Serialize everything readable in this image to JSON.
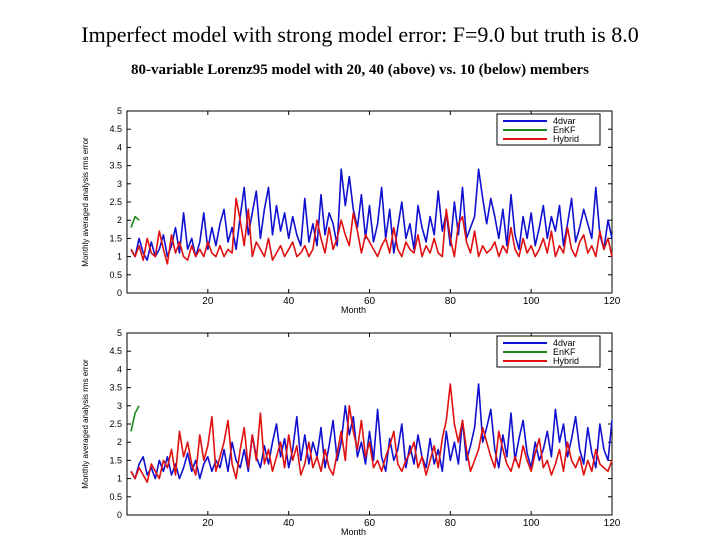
{
  "page": {
    "title": "Imperfect model  with strong model error: F=9.0 but truth is 8.0",
    "subtitle": "80-variable Lorenz95 model with 20, 40 (above) vs. 10 (below) members"
  },
  "colors": {
    "4dvar": "#1010d0",
    "EnKF": "#1a8a1a",
    "Hybrid": "#e01010",
    "axis": "#000000"
  },
  "chart_data": [
    {
      "type": "line",
      "title": "",
      "xlabel": "Month",
      "ylabel": "Monthly averaged analysis rms error",
      "xlim": [
        0,
        120
      ],
      "ylim": [
        0,
        5
      ],
      "xticks": [
        20,
        40,
        60,
        80,
        100,
        120
      ],
      "yticks": [
        0,
        0.5,
        1,
        1.5,
        2,
        2.5,
        3,
        3.5,
        4,
        4.5,
        5
      ],
      "legend_position": "top-right",
      "series": [
        {
          "name": "4dvar",
          "color": "#1010d0",
          "x_start": 1,
          "values": [
            1.2,
            1.0,
            1.5,
            1.1,
            0.9,
            1.4,
            1.0,
            1.2,
            1.6,
            1.0,
            1.3,
            1.8,
            1.1,
            2.2,
            1.2,
            1.5,
            1.0,
            1.4,
            2.2,
            1.2,
            1.8,
            1.3,
            1.9,
            2.3,
            1.4,
            1.8,
            1.2,
            2.1,
            2.9,
            1.6,
            2.2,
            2.8,
            1.5,
            2.3,
            2.9,
            1.6,
            2.4,
            1.7,
            2.2,
            1.5,
            2.1,
            1.6,
            1.3,
            2.6,
            1.4,
            1.9,
            1.3,
            2.7,
            1.6,
            2.2,
            1.9,
            1.3,
            3.4,
            2.4,
            3.2,
            2.3,
            1.8,
            2.7,
            1.5,
            2.4,
            1.4,
            1.9,
            2.9,
            1.5,
            2.3,
            1.1,
            1.8,
            2.5,
            1.5,
            1.9,
            1.2,
            2.4,
            1.8,
            1.4,
            2.1,
            1.6,
            2.8,
            1.7,
            2.2,
            1.3,
            2.5,
            1.6,
            2.9,
            1.5,
            1.8,
            2.1,
            3.4,
            2.6,
            1.9,
            2.6,
            2.1,
            1.5,
            2.3,
            1.3,
            2.7,
            1.6,
            1.2,
            2.1,
            1.5,
            2.2,
            1.3,
            1.8,
            2.4,
            1.5,
            2.1,
            1.7,
            2.4,
            1.3,
            1.9,
            2.6,
            1.4,
            1.8,
            2.3,
            1.9,
            1.5,
            2.9,
            1.6,
            1.2,
            2.0,
            1.5
          ]
        },
        {
          "name": "EnKF",
          "color": "#1a8a1a",
          "x_start": 1,
          "values": [
            1.8,
            2.1,
            2.0
          ]
        },
        {
          "name": "Hybrid",
          "color": "#e01010",
          "x_start": 1,
          "values": [
            1.2,
            1.0,
            1.3,
            0.9,
            1.5,
            1.1,
            1.0,
            1.7,
            1.2,
            0.8,
            1.6,
            1.1,
            1.4,
            1.0,
            0.9,
            1.3,
            1.0,
            1.2,
            1.0,
            1.4,
            1.1,
            1.0,
            1.3,
            1.0,
            1.2,
            1.1,
            2.6,
            2.0,
            1.3,
            2.3,
            1.0,
            1.4,
            1.2,
            1.0,
            1.5,
            0.9,
            1.1,
            1.3,
            1.0,
            1.2,
            1.4,
            1.0,
            1.1,
            1.3,
            1.0,
            1.2,
            2.0,
            1.5,
            1.1,
            1.8,
            1.2,
            1.5,
            2.0,
            1.6,
            1.3,
            2.2,
            1.7,
            1.1,
            1.6,
            1.4,
            1.2,
            1.0,
            1.3,
            1.5,
            1.1,
            1.8,
            1.2,
            1.0,
            1.4,
            1.2,
            1.1,
            1.6,
            1.0,
            1.3,
            1.1,
            1.5,
            1.1,
            1.0,
            2.3,
            1.5,
            1.0,
            1.9,
            2.1,
            1.4,
            1.1,
            1.7,
            1.0,
            1.3,
            1.1,
            1.2,
            1.4,
            1.0,
            1.3,
            1.1,
            1.8,
            1.2,
            1.0,
            1.5,
            1.1,
            1.3,
            1.0,
            1.2,
            1.5,
            1.1,
            1.7,
            1.0,
            1.3,
            1.1,
            1.8,
            1.2,
            1.0,
            1.4,
            1.6,
            1.1,
            1.3,
            1.0,
            1.7,
            1.2,
            1.5,
            1.0
          ]
        }
      ]
    },
    {
      "type": "line",
      "title": "",
      "xlabel": "Month",
      "ylabel": "Monthly averaged analysis rms error",
      "xlim": [
        0,
        120
      ],
      "ylim": [
        0,
        5
      ],
      "xticks": [
        20,
        40,
        60,
        80,
        100,
        120
      ],
      "yticks": [
        0,
        0.5,
        1,
        1.5,
        2,
        2.5,
        3,
        3.5,
        4,
        4.5,
        5
      ],
      "legend_position": "top-right",
      "series": [
        {
          "name": "4dvar",
          "color": "#1010d0",
          "x_start": 1,
          "values": [
            1.2,
            1.0,
            1.4,
            1.6,
            1.1,
            1.3,
            1.0,
            1.5,
            1.2,
            1.6,
            1.1,
            1.4,
            1.0,
            1.3,
            1.7,
            1.2,
            1.5,
            1.0,
            1.4,
            1.6,
            1.2,
            1.5,
            1.3,
            1.8,
            1.2,
            2.0,
            1.5,
            1.3,
            1.8,
            1.2,
            2.2,
            1.6,
            1.3,
            1.9,
            1.4,
            2.0,
            2.5,
            1.6,
            2.1,
            1.3,
            1.8,
            2.7,
            1.5,
            2.2,
            1.4,
            2.0,
            1.6,
            2.4,
            1.3,
            1.9,
            2.6,
            1.5,
            2.0,
            3.0,
            2.2,
            2.7,
            1.6,
            2.0,
            1.4,
            2.3,
            1.5,
            2.9,
            1.6,
            1.2,
            2.1,
            1.5,
            1.8,
            2.5,
            1.3,
            1.9,
            1.4,
            2.2,
            1.6,
            1.3,
            2.1,
            1.4,
            1.8,
            1.2,
            2.3,
            1.5,
            2.0,
            1.4,
            2.6,
            1.5,
            1.9,
            2.4,
            3.6,
            2.0,
            2.4,
            2.9,
            1.8,
            1.3,
            2.2,
            1.6,
            2.8,
            1.5,
            2.1,
            2.6,
            1.7,
            1.3,
            2.0,
            1.5,
            1.8,
            2.3,
            1.6,
            2.9,
            2.0,
            2.5,
            1.6,
            2.1,
            2.7,
            1.8,
            1.4,
            2.4,
            1.7,
            1.3,
            2.5,
            1.8,
            1.5,
            2.6
          ]
        },
        {
          "name": "EnKF",
          "color": "#1a8a1a",
          "x_start": 1,
          "values": [
            2.3,
            2.8,
            3.0
          ]
        },
        {
          "name": "Hybrid",
          "color": "#e01010",
          "x_start": 1,
          "values": [
            1.2,
            1.0,
            1.3,
            1.1,
            0.9,
            1.4,
            1.2,
            1.0,
            1.5,
            1.3,
            1.8,
            1.1,
            2.3,
            1.6,
            2.0,
            1.4,
            1.1,
            2.2,
            1.5,
            1.9,
            2.7,
            1.2,
            1.6,
            2.0,
            2.6,
            1.4,
            1.0,
            1.8,
            2.4,
            1.3,
            2.2,
            1.5,
            2.8,
            1.4,
            1.8,
            1.2,
            1.6,
            2.0,
            1.3,
            2.2,
            1.5,
            1.9,
            1.1,
            1.4,
            2.0,
            1.3,
            1.6,
            1.2,
            1.8,
            1.3,
            1.1,
            1.7,
            2.3,
            1.5,
            3.0,
            2.3,
            1.8,
            2.6,
            1.6,
            2.0,
            1.3,
            1.5,
            1.2,
            1.6,
            1.9,
            2.3,
            1.4,
            1.2,
            1.5,
            1.7,
            2.0,
            1.3,
            1.6,
            1.1,
            1.5,
            1.9,
            1.3,
            2.1,
            2.6,
            3.6,
            2.5,
            2.0,
            2.6,
            1.8,
            1.2,
            1.5,
            1.8,
            2.4,
            2.0,
            1.6,
            1.3,
            2.3,
            1.8,
            1.4,
            1.2,
            1.6,
            1.3,
            1.9,
            1.5,
            1.2,
            1.7,
            2.1,
            1.3,
            1.5,
            1.1,
            1.4,
            1.8,
            1.2,
            2.0,
            1.5,
            1.3,
            1.6,
            1.1,
            1.5,
            1.2,
            1.8,
            1.4,
            1.3,
            1.2,
            1.5
          ]
        }
      ]
    }
  ]
}
